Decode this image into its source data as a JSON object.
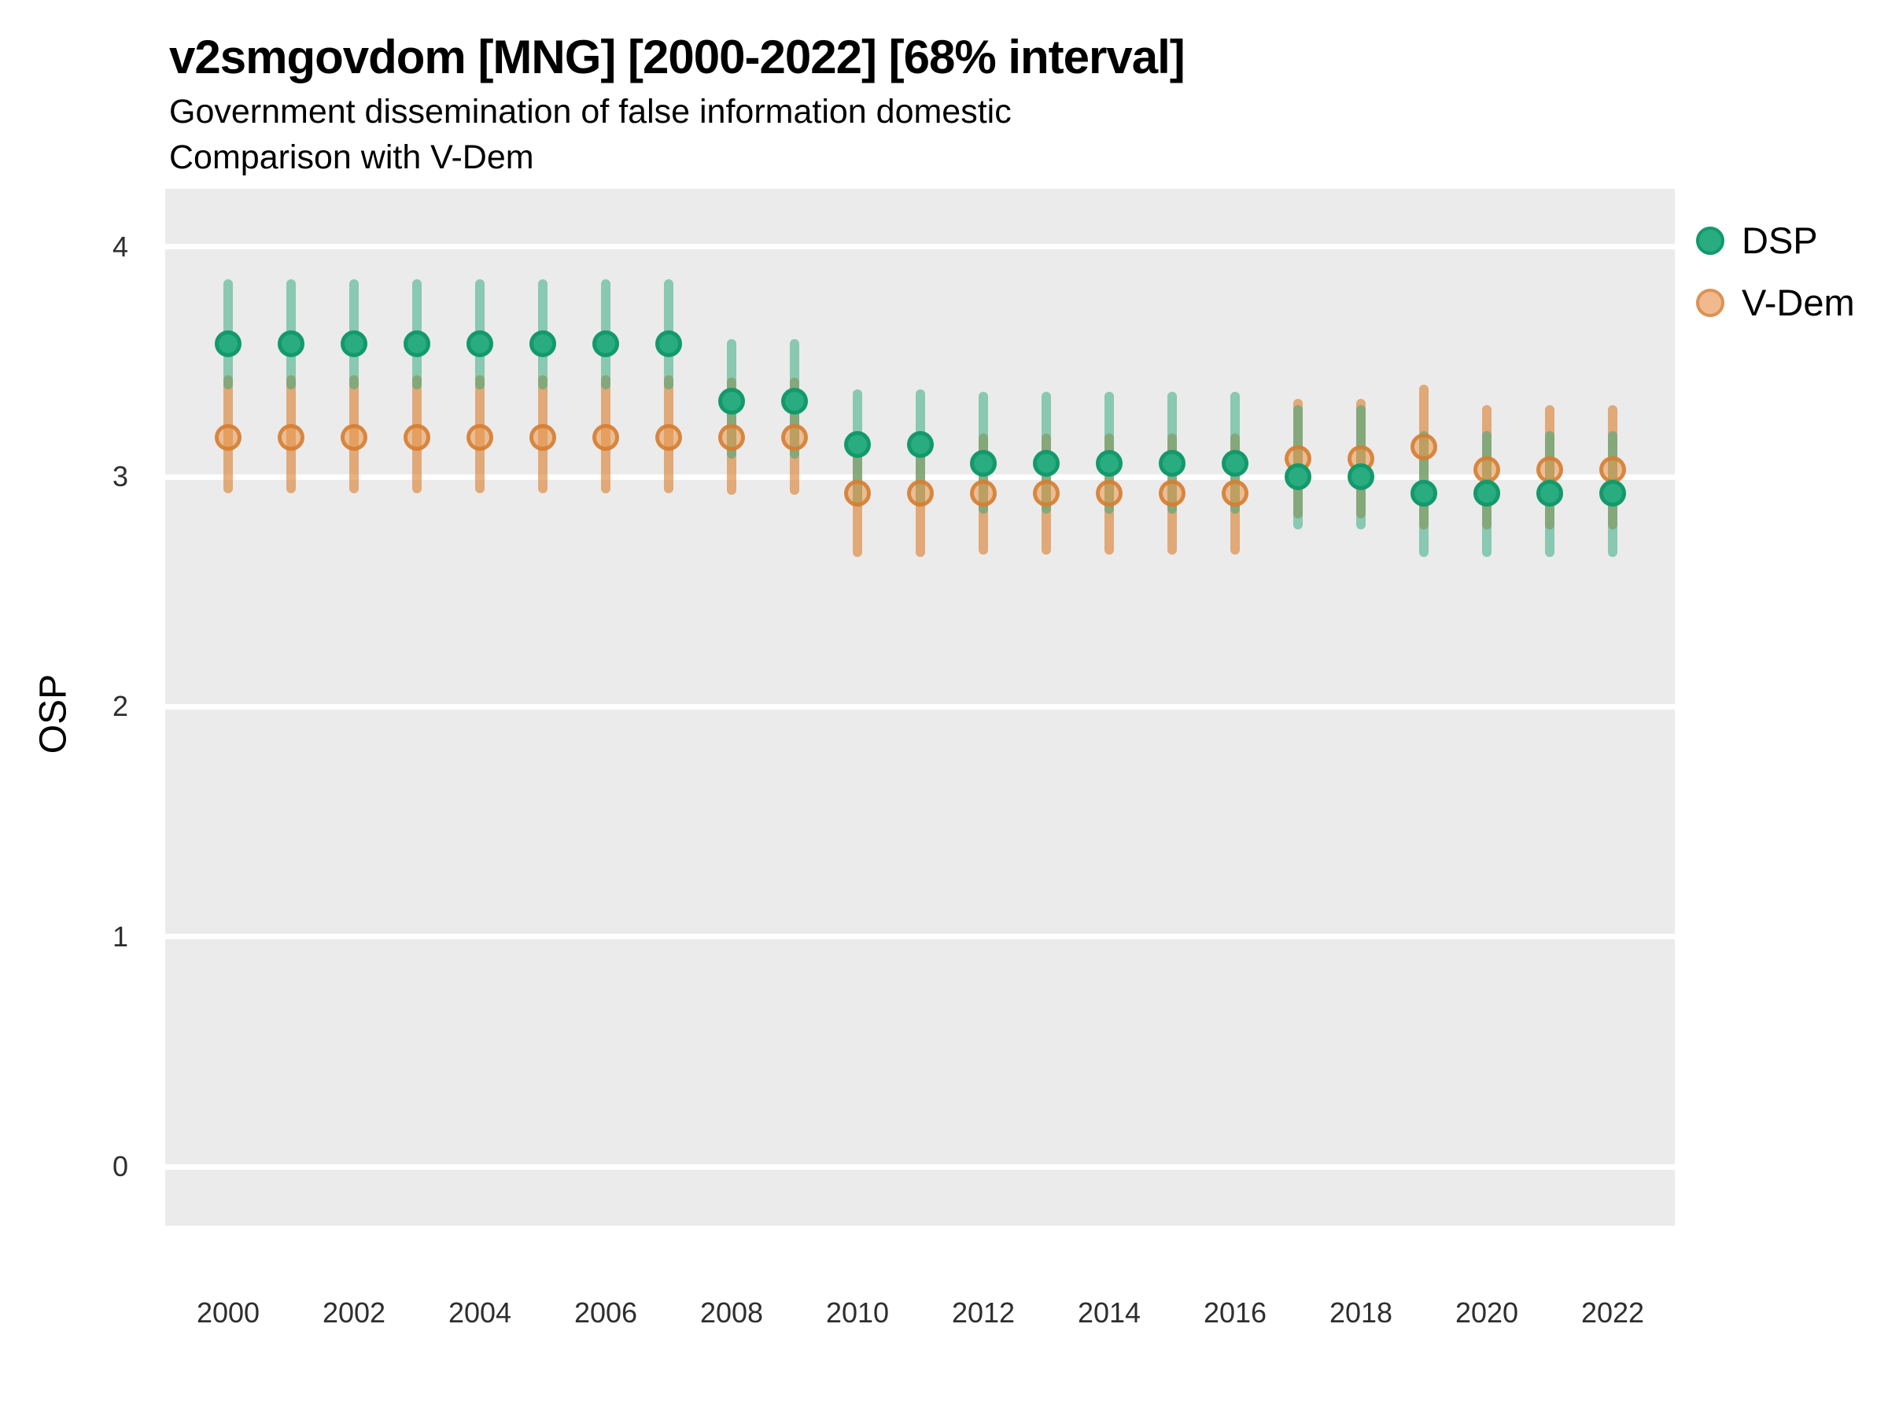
{
  "header": {
    "title": "v2smgovdom [MNG] [2000-2022] [68% interval]",
    "subtitle1": "Government dissemination of false information domestic",
    "subtitle2": "Comparison with V-Dem"
  },
  "legend": {
    "items": [
      {
        "label": "DSP",
        "fill": "#29AC7F",
        "stroke": "#13996B"
      },
      {
        "label": "V-Dem",
        "fill": "#F0BA8E",
        "stroke": "#DC9253"
      }
    ]
  },
  "chart_data": {
    "type": "scatter",
    "title": "v2smgovdom [MNG] [2000-2022] [68% interval]",
    "subtitle": "Government dissemination of false information domestic — Comparison with V-Dem",
    "xlabel": "",
    "ylabel": "OSP",
    "interval_note": "68% interval",
    "x": [
      2000,
      2001,
      2002,
      2003,
      2004,
      2005,
      2006,
      2007,
      2008,
      2009,
      2010,
      2011,
      2012,
      2013,
      2014,
      2015,
      2016,
      2017,
      2018,
      2019,
      2020,
      2021,
      2022
    ],
    "x_tick_labels": [
      "2000",
      "2002",
      "2004",
      "2006",
      "2008",
      "2010",
      "2012",
      "2014",
      "2016",
      "2018",
      "2020",
      "2022"
    ],
    "y_ticks": [
      0,
      1,
      2,
      3,
      4
    ],
    "ylim": [
      -0.26,
      4.25
    ],
    "grid": "major horizontal white on gray panel",
    "legend_position": "top-right outside",
    "panel_background": "#EBEBEB",
    "series": [
      {
        "name": "DSP",
        "point_fill": "#29AC7F",
        "point_stroke": "#13996B",
        "bar_rgba": "rgba(48,168,125,0.52)",
        "values": [
          3.58,
          3.58,
          3.58,
          3.58,
          3.58,
          3.58,
          3.58,
          3.58,
          3.33,
          3.33,
          3.14,
          3.14,
          3.06,
          3.06,
          3.06,
          3.06,
          3.06,
          3.0,
          3.0,
          2.93,
          2.93,
          2.93,
          2.93
        ],
        "lo": [
          3.38,
          3.38,
          3.38,
          3.38,
          3.38,
          3.38,
          3.38,
          3.38,
          3.08,
          3.08,
          2.87,
          2.87,
          2.84,
          2.84,
          2.84,
          2.84,
          2.84,
          2.77,
          2.77,
          2.65,
          2.65,
          2.65,
          2.65
        ],
        "hi": [
          3.86,
          3.86,
          3.86,
          3.86,
          3.86,
          3.86,
          3.86,
          3.86,
          3.6,
          3.6,
          3.38,
          3.38,
          3.37,
          3.37,
          3.37,
          3.37,
          3.37,
          3.31,
          3.31,
          3.2,
          3.2,
          3.2,
          3.2
        ]
      },
      {
        "name": "V-Dem",
        "point_fill": "rgba(234,152,77,0.55)",
        "point_stroke": "rgba(213,124,48,0.85)",
        "bar_rgba": "rgba(217,119,36,0.58)",
        "values": [
          3.17,
          3.17,
          3.17,
          3.17,
          3.17,
          3.17,
          3.17,
          3.17,
          3.17,
          3.17,
          2.93,
          2.93,
          2.93,
          2.93,
          2.93,
          2.93,
          2.93,
          3.08,
          3.08,
          3.13,
          3.03,
          3.03,
          3.03
        ],
        "lo": [
          2.93,
          2.93,
          2.93,
          2.93,
          2.93,
          2.93,
          2.93,
          2.93,
          2.92,
          2.92,
          2.65,
          2.65,
          2.66,
          2.66,
          2.66,
          2.66,
          2.66,
          2.82,
          2.82,
          2.77,
          2.77,
          2.77,
          2.77
        ],
        "hi": [
          3.44,
          3.44,
          3.44,
          3.44,
          3.44,
          3.44,
          3.44,
          3.44,
          3.43,
          3.43,
          3.19,
          3.19,
          3.19,
          3.19,
          3.19,
          3.19,
          3.19,
          3.34,
          3.34,
          3.4,
          3.31,
          3.31,
          3.31
        ]
      }
    ]
  }
}
